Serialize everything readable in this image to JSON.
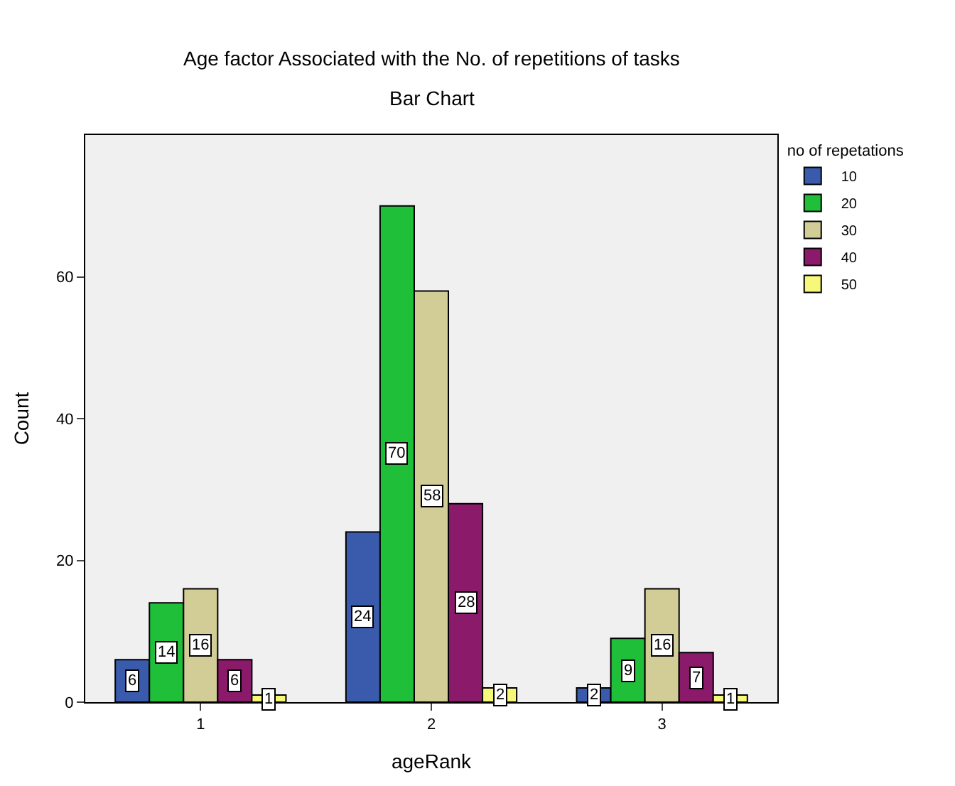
{
  "chart_data": {
    "type": "bar",
    "title": "Age factor Associated with the No. of repetitions of tasks",
    "subtitle": "Bar Chart",
    "xlabel": "ageRank",
    "ylabel": "Count",
    "legend_title": "no of repetations",
    "categories": [
      "1",
      "2",
      "3"
    ],
    "series": [
      {
        "name": "10",
        "color": "#3a5bac",
        "values": [
          6,
          24,
          2
        ]
      },
      {
        "name": "20",
        "color": "#1fbf3a",
        "values": [
          14,
          70,
          9
        ]
      },
      {
        "name": "30",
        "color": "#d2cc96",
        "values": [
          16,
          58,
          16
        ]
      },
      {
        "name": "40",
        "color": "#8b1a6b",
        "values": [
          6,
          28,
          7
        ]
      },
      {
        "name": "50",
        "color": "#f7f77a",
        "values": [
          1,
          2,
          1
        ]
      }
    ],
    "ylim": [
      0,
      80
    ],
    "yticks": [
      0,
      20,
      40,
      60
    ],
    "grid": false,
    "legend": "top right",
    "data_labels": true
  }
}
